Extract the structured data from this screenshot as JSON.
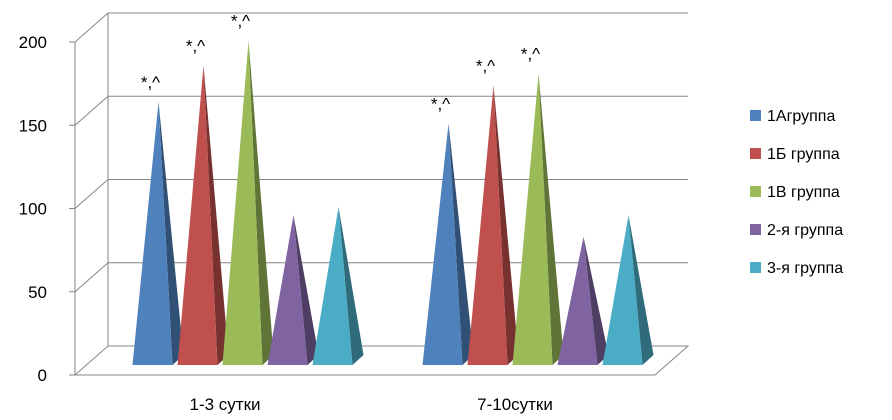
{
  "chart_data": {
    "type": "bar",
    "style": "3d-pyramid",
    "categories": [
      "1-3 сутки",
      "7-10сутки"
    ],
    "series": [
      {
        "name": "1Агруппа",
        "color": "#4F81BD",
        "values": [
          158,
          145
        ],
        "annotations": [
          "*,^",
          "*,^"
        ]
      },
      {
        "name": "1Б группа",
        "color": "#C0504D",
        "values": [
          180,
          168
        ],
        "annotations": [
          "*,^",
          "*,^"
        ]
      },
      {
        "name": "1В группа",
        "color": "#9BBB59",
        "values": [
          195,
          175
        ],
        "annotations": [
          "*,^",
          "*,^"
        ]
      },
      {
        "name": "2-я группа",
        "color": "#8064A2",
        "values": [
          90,
          77
        ],
        "annotations": [
          "",
          ""
        ]
      },
      {
        "name": "3-я группа",
        "color": "#4BACC6",
        "values": [
          95,
          90
        ],
        "annotations": [
          "",
          ""
        ]
      }
    ],
    "ylim": [
      0,
      200
    ],
    "yticks": [
      0,
      50,
      100,
      150,
      200
    ],
    "grid": true,
    "legend_position": "right"
  }
}
